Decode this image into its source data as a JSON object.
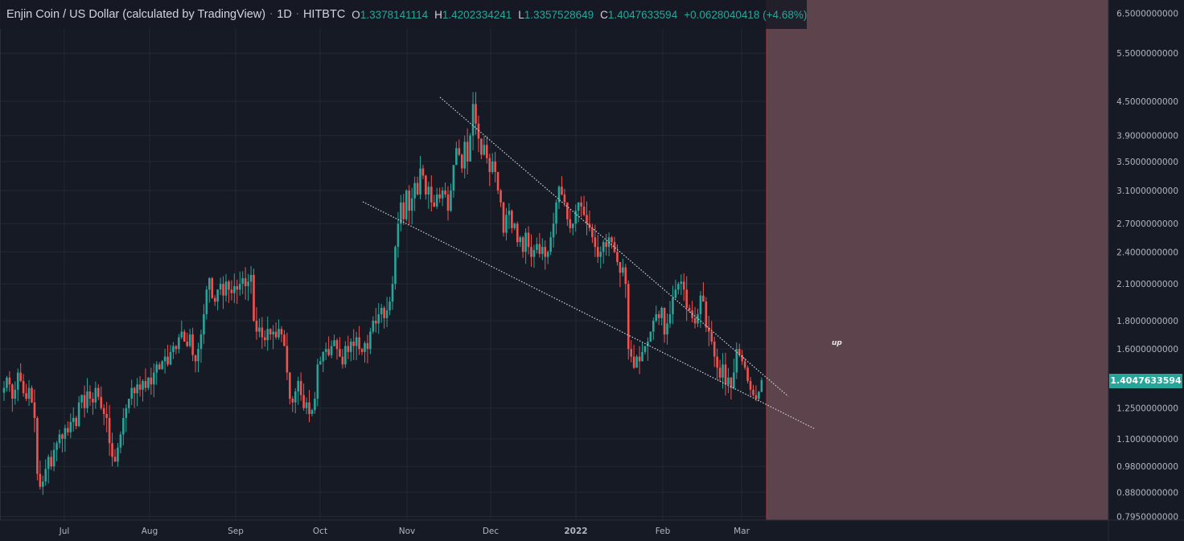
{
  "header": {
    "symbol": "Enjin Coin / US Dollar (calculated by TradingView)",
    "interval": "1D",
    "exchange": "HITBTC",
    "open_key": "O",
    "open": "1.3378141114",
    "high_key": "H",
    "high": "1.4202334241",
    "low_key": "L",
    "low": "1.3357528649",
    "close_key": "C",
    "close": "1.4047633594",
    "change": "+0.0628040418 (+4.68%)"
  },
  "colors": {
    "background": "#161a25",
    "up": "#26a69a",
    "down": "#ef5350",
    "zone": "#5d434b",
    "zone_border": "#b2323c",
    "trendline": "#d1d4dc"
  },
  "annotation": "up",
  "last_price_label": "1.4047633594",
  "chart_data": {
    "type": "candlestick",
    "title": "Enjin Coin / US Dollar (calculated by TradingView)",
    "scale": "log",
    "grid": true,
    "ylim": [
      0.78,
      6.7
    ],
    "y_ticks": [
      "6.5000000000",
      "5.5000000000",
      "4.5000000000",
      "3.9000000000",
      "3.5000000000",
      "3.1000000000",
      "2.7000000000",
      "2.4000000000",
      "2.1000000000",
      "1.8000000000",
      "1.6000000000",
      "1.2500000000",
      "1.1000000000",
      "0.9800000000",
      "0.8800000000",
      "0.7950000000"
    ],
    "x_ticks": [
      "Jul",
      "Aug",
      "Sep",
      "Oct",
      "Nov",
      "Dec",
      "2022",
      "Feb",
      "Mar"
    ],
    "closes": [
      1.36,
      1.42,
      1.38,
      1.3,
      1.35,
      1.45,
      1.4,
      1.33,
      1.3,
      1.36,
      1.28,
      1.2,
      0.95,
      0.9,
      0.92,
      0.97,
      1.02,
      0.98,
      1.05,
      1.08,
      1.12,
      1.1,
      1.15,
      1.13,
      1.18,
      1.2,
      1.16,
      1.28,
      1.32,
      1.25,
      1.34,
      1.3,
      1.28,
      1.36,
      1.31,
      1.25,
      1.22,
      1.2,
      1.08,
      1.02,
      1.0,
      1.06,
      1.12,
      1.2,
      1.25,
      1.3,
      1.36,
      1.33,
      1.38,
      1.35,
      1.4,
      1.36,
      1.42,
      1.38,
      1.45,
      1.5,
      1.47,
      1.52,
      1.55,
      1.5,
      1.58,
      1.62,
      1.6,
      1.68,
      1.72,
      1.65,
      1.62,
      1.7,
      1.56,
      1.52,
      1.6,
      1.7,
      1.85,
      2.05,
      2.15,
      1.98,
      1.95,
      2.05,
      2.1,
      2.0,
      2.12,
      2.05,
      2.02,
      2.08,
      2.05,
      2.1,
      2.15,
      2.08,
      2.12,
      2.18,
      1.8,
      1.72,
      1.75,
      1.68,
      1.66,
      1.74,
      1.7,
      1.72,
      1.68,
      1.74,
      1.7,
      1.62,
      1.45,
      1.3,
      1.28,
      1.34,
      1.4,
      1.32,
      1.25,
      1.28,
      1.22,
      1.24,
      1.3,
      1.5,
      1.52,
      1.58,
      1.6,
      1.56,
      1.62,
      1.66,
      1.6,
      1.55,
      1.5,
      1.62,
      1.58,
      1.65,
      1.62,
      1.68,
      1.6,
      1.58,
      1.64,
      1.6,
      1.72,
      1.8,
      1.78,
      1.85,
      1.9,
      1.82,
      1.88,
      1.95,
      2.1,
      2.45,
      2.7,
      2.95,
      2.75,
      3.1,
      2.85,
      3.0,
      3.2,
      3.05,
      3.4,
      3.3,
      3.05,
      3.15,
      2.95,
      2.9,
      3.05,
      3.0,
      3.1,
      3.05,
      2.85,
      3.1,
      3.45,
      3.7,
      3.6,
      3.4,
      3.8,
      3.5,
      3.9,
      4.45,
      4.1,
      3.85,
      3.6,
      3.75,
      3.55,
      3.35,
      3.5,
      3.35,
      3.1,
      2.95,
      2.6,
      2.8,
      2.85,
      2.65,
      2.7,
      2.5,
      2.55,
      2.4,
      2.6,
      2.45,
      2.35,
      2.42,
      2.48,
      2.38,
      2.45,
      2.35,
      2.4,
      2.55,
      2.7,
      2.95,
      3.15,
      3.05,
      2.95,
      2.75,
      2.65,
      2.7,
      2.85,
      2.95,
      2.9,
      2.8,
      2.7,
      2.65,
      2.55,
      2.45,
      2.35,
      2.4,
      2.5,
      2.45,
      2.55,
      2.5,
      2.4,
      2.3,
      2.2,
      2.25,
      2.1,
      1.6,
      1.55,
      1.48,
      1.55,
      1.52,
      1.58,
      1.62,
      1.65,
      1.72,
      1.8,
      1.85,
      1.82,
      1.9,
      1.7,
      1.78,
      1.85,
      1.98,
      2.05,
      2.1,
      2.12,
      2.05,
      1.9,
      1.88,
      1.82,
      1.78,
      1.85,
      2.0,
      1.95,
      1.75,
      1.72,
      1.65,
      1.55,
      1.48,
      1.42,
      1.5,
      1.38,
      1.42,
      1.36,
      1.45,
      1.6,
      1.56,
      1.52,
      1.48,
      1.4,
      1.35,
      1.32,
      1.3,
      1.3378,
      1.4048
    ],
    "last_candle": {
      "open": 1.3378141114,
      "high": 1.4202334241,
      "low": 1.3357528649,
      "close": 1.4047633594
    }
  }
}
